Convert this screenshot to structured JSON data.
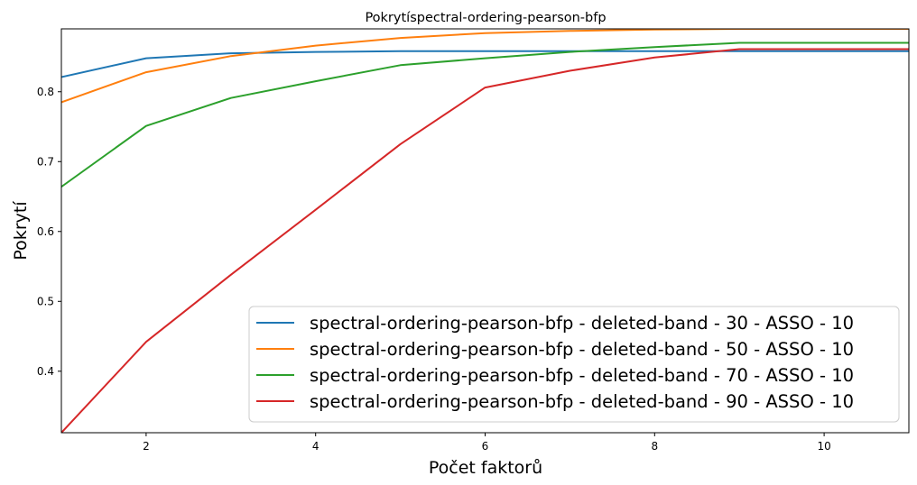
{
  "chart_data": {
    "type": "line",
    "title": "Pokrytíspectral-ordering-pearson-bfp",
    "xlabel": "Počet faktorů",
    "ylabel": "Pokrytí",
    "xlim": [
      1,
      11
    ],
    "ylim": [
      0.312,
      0.89
    ],
    "xticks": [
      2,
      4,
      6,
      8,
      10
    ],
    "yticks": [
      0.4,
      0.5,
      0.6,
      0.7,
      0.8
    ],
    "grid": false,
    "legend_position": "lower-right",
    "x": [
      1,
      2,
      3,
      4,
      5,
      6,
      7,
      8,
      9,
      10,
      11
    ],
    "series": [
      {
        "name": "spectral-ordering-pearson-bfp - deleted-band - 30 - ASSO - 10",
        "color": "#1f77b4",
        "values": [
          0.821,
          0.848,
          0.855,
          0.857,
          0.858,
          0.858,
          0.858,
          0.858,
          0.858,
          0.858,
          0.858
        ]
      },
      {
        "name": "spectral-ordering-pearson-bfp - deleted-band - 50 - ASSO - 10",
        "color": "#ff7f0e",
        "values": [
          0.785,
          0.828,
          0.851,
          0.866,
          0.877,
          0.884,
          0.887,
          0.889,
          0.89,
          0.89,
          0.89
        ]
      },
      {
        "name": "spectral-ordering-pearson-bfp - deleted-band - 70 - ASSO - 10",
        "color": "#2ca02c",
        "values": [
          0.664,
          0.751,
          0.791,
          0.815,
          0.838,
          0.848,
          0.857,
          0.864,
          0.87,
          0.87,
          0.87
        ]
      },
      {
        "name": "spectral-ordering-pearson-bfp - deleted-band - 90 - ASSO - 10",
        "color": "#d62728",
        "values": [
          0.312,
          0.442,
          0.538,
          0.631,
          0.725,
          0.806,
          0.83,
          0.849,
          0.861,
          0.861,
          0.861
        ]
      }
    ]
  }
}
